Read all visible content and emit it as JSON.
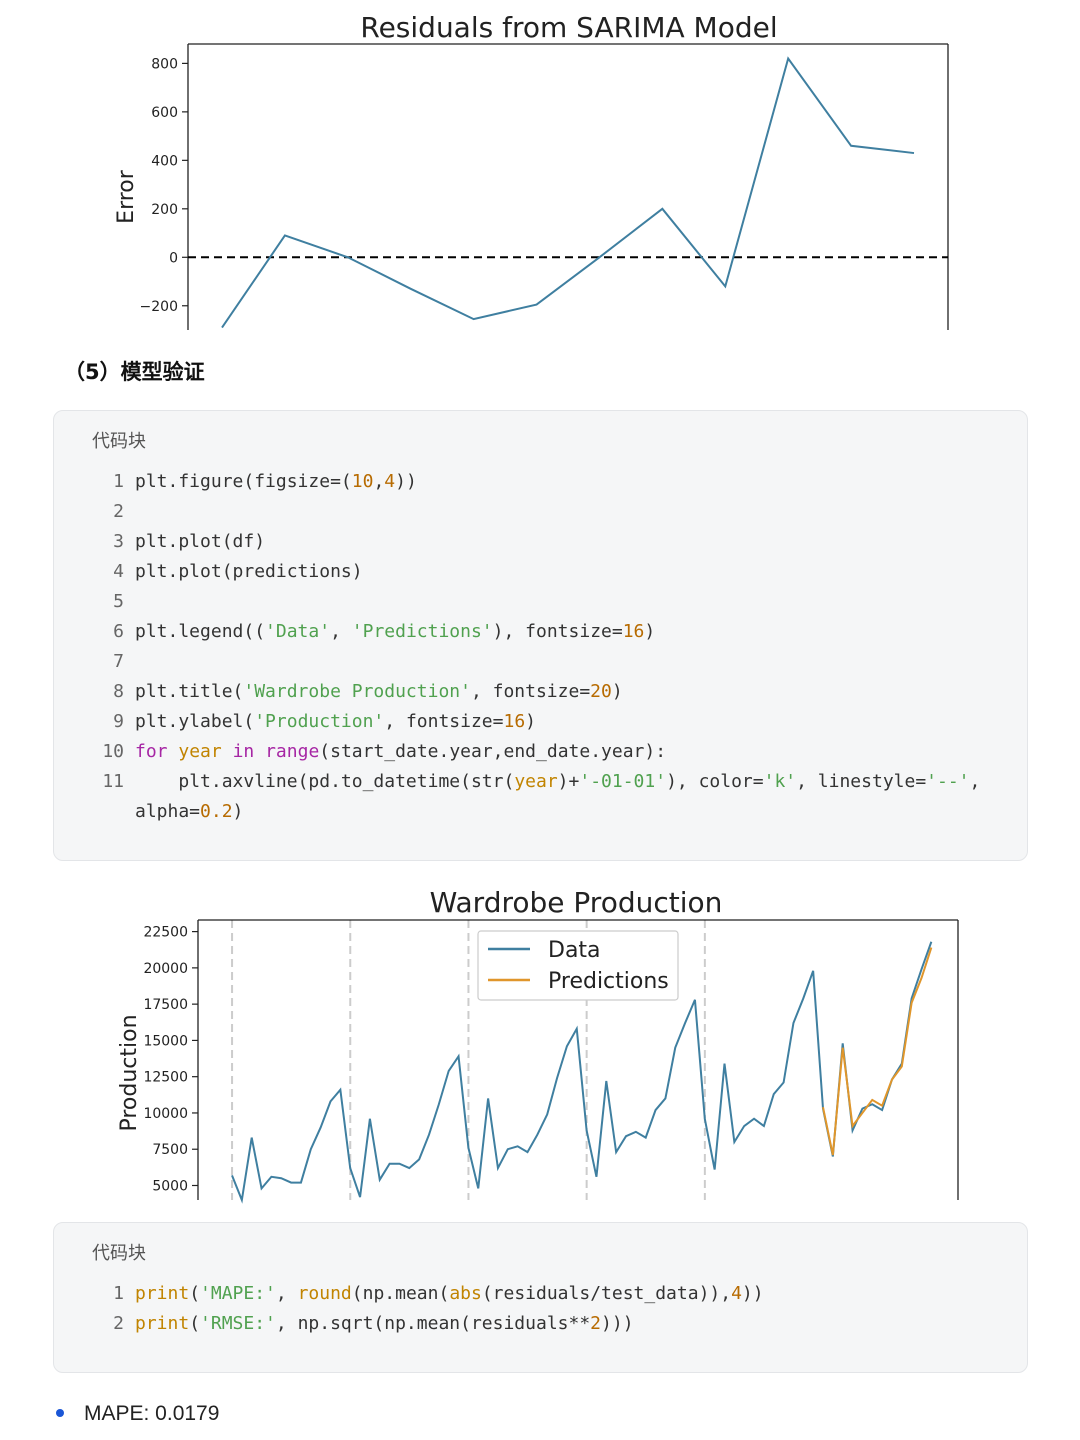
{
  "residual_chart": {
    "chart_data": {
      "type": "line",
      "title": "Residuals from SARIMA Model",
      "xlabel": "",
      "ylabel": "Error",
      "ylim": [
        -300,
        880
      ],
      "yticks": [
        800,
        600,
        400,
        200,
        0,
        -200
      ],
      "ytick_labels": [
        "800",
        "600",
        "400",
        "200",
        "0",
        "−200"
      ],
      "reference_line": {
        "y": 0,
        "style": "dashed",
        "color": "#000000"
      },
      "series": [
        {
          "color": "#3f7fa0",
          "values": [
            -290,
            90,
            0,
            -130,
            -255,
            -195,
            0,
            200,
            -120,
            820,
            460,
            430
          ]
        }
      ]
    }
  },
  "section": {
    "heading": "（5）模型验证"
  },
  "code_block_1": {
    "header": "代码块",
    "lines": [
      {
        "n": "1",
        "tokens": [
          {
            "t": "plt.figure(figsize=("
          },
          {
            "t": "10",
            "c": "num"
          },
          {
            "t": ","
          },
          {
            "t": "4",
            "c": "num"
          },
          {
            "t": "))"
          }
        ]
      },
      {
        "n": "2",
        "tokens": []
      },
      {
        "n": "3",
        "tokens": [
          {
            "t": "plt.plot(df)"
          }
        ]
      },
      {
        "n": "4",
        "tokens": [
          {
            "t": "plt.plot(predictions)"
          }
        ]
      },
      {
        "n": "5",
        "tokens": []
      },
      {
        "n": "6",
        "tokens": [
          {
            "t": "plt.legend(("
          },
          {
            "t": "'Data'",
            "c": "str"
          },
          {
            "t": ", "
          },
          {
            "t": "'Predictions'",
            "c": "str"
          },
          {
            "t": "), fontsize="
          },
          {
            "t": "16",
            "c": "num"
          },
          {
            "t": ")"
          }
        ]
      },
      {
        "n": "7",
        "tokens": []
      },
      {
        "n": "8",
        "tokens": [
          {
            "t": "plt.title("
          },
          {
            "t": "'Wardrobe Production'",
            "c": "str"
          },
          {
            "t": ", fontsize="
          },
          {
            "t": "20",
            "c": "num"
          },
          {
            "t": ")"
          }
        ]
      },
      {
        "n": "9",
        "tokens": [
          {
            "t": "plt.ylabel("
          },
          {
            "t": "'Production'",
            "c": "str"
          },
          {
            "t": ", fontsize="
          },
          {
            "t": "16",
            "c": "num"
          },
          {
            "t": ")"
          }
        ]
      },
      {
        "n": "10",
        "tokens": [
          {
            "t": "for",
            "c": "kw"
          },
          {
            "t": " "
          },
          {
            "t": "year",
            "c": "fn"
          },
          {
            "t": " "
          },
          {
            "t": "in",
            "c": "kw"
          },
          {
            "t": " "
          },
          {
            "t": "range",
            "c": "kw"
          },
          {
            "t": "(start_date.year,end_date.year):"
          }
        ]
      },
      {
        "n": "11",
        "wrap": true,
        "tokens": [
          {
            "t": "    plt.axvline(pd.to_datetime(str("
          },
          {
            "t": "year",
            "c": "fn"
          },
          {
            "t": ")+"
          },
          {
            "t": "'-01-01'",
            "c": "str"
          },
          {
            "t": "), color="
          },
          {
            "t": "'k'",
            "c": "str"
          },
          {
            "t": ", linestyle="
          },
          {
            "t": "'--'",
            "c": "str"
          },
          {
            "t": ", alpha="
          },
          {
            "t": "0.2",
            "c": "num"
          },
          {
            "t": ")"
          }
        ]
      }
    ]
  },
  "production_chart": {
    "chart_data": {
      "type": "line",
      "title": "Wardrobe Production",
      "xlabel": "",
      "ylabel": "Production",
      "ylim": [
        4000,
        23300
      ],
      "yticks": [
        22500,
        20000,
        17500,
        15000,
        12500,
        10000,
        7500,
        5000
      ],
      "ytick_labels": [
        "22500",
        "20000",
        "17500",
        "15000",
        "12500",
        "10000",
        "7500",
        "5000"
      ],
      "legend_position": "top-center",
      "year_lines": [
        3,
        15,
        27,
        39,
        51
      ],
      "series": [
        {
          "name": "Data",
          "color": "#3f7fa0",
          "values": [
            5700,
            4000,
            8300,
            4800,
            5600,
            5500,
            5200,
            5200,
            7500,
            9000,
            10800,
            11600,
            6200,
            4200,
            9600,
            5400,
            6500,
            6500,
            6200,
            6800,
            8500,
            10600,
            12900,
            13900,
            7600,
            4800,
            11000,
            6200,
            7500,
            7700,
            7300,
            8500,
            9900,
            12400,
            14600,
            15800,
            8800,
            5600,
            12200,
            7300,
            8400,
            8700,
            8300,
            10200,
            11000,
            14500,
            16200,
            17800,
            9600,
            6100,
            13400,
            8000,
            9100,
            9600,
            9100,
            11300,
            12100,
            16200,
            17900,
            19800,
            10300,
            7000,
            14800,
            8800,
            10300,
            10600,
            10200,
            12300,
            13400,
            17900,
            19900,
            21800
          ]
        },
        {
          "name": "Predictions",
          "color": "#e0962b",
          "offset": 60,
          "values": [
            10400,
            7100,
            14500,
            9100,
            10000,
            10900,
            10500,
            12300,
            13200,
            17600,
            19300,
            21400
          ]
        }
      ]
    }
  },
  "code_block_2": {
    "header": "代码块",
    "lines": [
      {
        "n": "1",
        "tokens": [
          {
            "t": "print",
            "c": "fn"
          },
          {
            "t": "("
          },
          {
            "t": "'MAPE:'",
            "c": "str"
          },
          {
            "t": ", "
          },
          {
            "t": "round",
            "c": "fn"
          },
          {
            "t": "(np.mean("
          },
          {
            "t": "abs",
            "c": "fn"
          },
          {
            "t": "(residuals/test_data)),"
          },
          {
            "t": "4",
            "c": "num"
          },
          {
            "t": "))"
          }
        ]
      },
      {
        "n": "2",
        "tokens": [
          {
            "t": "print",
            "c": "fn"
          },
          {
            "t": "("
          },
          {
            "t": "'RMSE:'",
            "c": "str"
          },
          {
            "t": ", np.sqrt(np.mean(residuals**"
          },
          {
            "t": "2",
            "c": "num"
          },
          {
            "t": ")))"
          }
        ]
      }
    ]
  },
  "results": {
    "mape": "MAPE: 0.0179"
  }
}
